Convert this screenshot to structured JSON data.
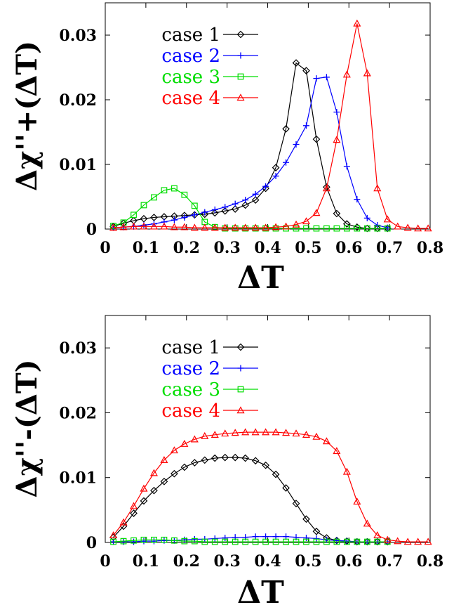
{
  "chart_data": [
    {
      "type": "line",
      "xlabel": "ΔT",
      "ylabel": "Δχ''+(ΔT)",
      "xlim": [
        0,
        0.8
      ],
      "ylim": [
        0,
        0.035
      ],
      "xticks": [
        "0",
        "0.1",
        "0.2",
        "0.3",
        "0.4",
        "0.5",
        "0.6",
        "0.7",
        "0.8"
      ],
      "yticks": [
        "0",
        "0.01",
        "0.02",
        "0.03"
      ],
      "legend_position": "top-left",
      "grid": false,
      "series": [
        {
          "name": "case 1",
          "color": "#000000",
          "marker": "diamond",
          "x": [
            0.02,
            0.045,
            0.07,
            0.095,
            0.12,
            0.145,
            0.17,
            0.195,
            0.22,
            0.245,
            0.27,
            0.295,
            0.32,
            0.345,
            0.37,
            0.395,
            0.42,
            0.445,
            0.47,
            0.495,
            0.52,
            0.545,
            0.57,
            0.595,
            0.62,
            0.645,
            0.67,
            0.695
          ],
          "y": [
            0.0004,
            0.0009,
            0.0013,
            0.0016,
            0.0018,
            0.0019,
            0.002,
            0.0021,
            0.0022,
            0.0023,
            0.0025,
            0.0028,
            0.0031,
            0.0037,
            0.0045,
            0.0063,
            0.0095,
            0.0155,
            0.0257,
            0.0245,
            0.0139,
            0.0065,
            0.0024,
            0.0008,
            0.0003,
            0.0001,
            0.0001,
            0.0001
          ]
        },
        {
          "name": "case 2",
          "color": "#0000ff",
          "marker": "plus",
          "x": [
            0.02,
            0.045,
            0.07,
            0.095,
            0.12,
            0.145,
            0.17,
            0.195,
            0.22,
            0.245,
            0.27,
            0.295,
            0.32,
            0.345,
            0.37,
            0.395,
            0.42,
            0.445,
            0.47,
            0.495,
            0.52,
            0.545,
            0.57,
            0.595,
            0.62,
            0.645,
            0.67,
            0.695
          ],
          "y": [
            0.0002,
            0.0003,
            0.0004,
            0.0006,
            0.0008,
            0.0011,
            0.0014,
            0.0018,
            0.0022,
            0.0026,
            0.003,
            0.0034,
            0.0039,
            0.0045,
            0.0054,
            0.0066,
            0.0082,
            0.0103,
            0.0131,
            0.016,
            0.0233,
            0.0235,
            0.0181,
            0.0097,
            0.0046,
            0.0017,
            0.0006,
            0.0002
          ]
        },
        {
          "name": "case 3",
          "color": "#00dd00",
          "marker": "square",
          "x": [
            0.02,
            0.045,
            0.07,
            0.095,
            0.12,
            0.145,
            0.17,
            0.195,
            0.22,
            0.245,
            0.27,
            0.295,
            0.32,
            0.345,
            0.37,
            0.395,
            0.42,
            0.445,
            0.47,
            0.495,
            0.52,
            0.545,
            0.57,
            0.595,
            0.62,
            0.645,
            0.67,
            0.695
          ],
          "y": [
            0.0005,
            0.001,
            0.0022,
            0.0037,
            0.0049,
            0.006,
            0.0063,
            0.0053,
            0.0036,
            0.0011,
            0.0003,
            0.0001,
            0.0001,
            0.0001,
            0.0001,
            0.0001,
            0.0001,
            0.0001,
            0.0001,
            0.0001,
            0.0001,
            0.0001,
            0.0001,
            0.0001,
            0.0001,
            0.0001,
            0.0001,
            0.0001
          ]
        },
        {
          "name": "case 4",
          "color": "#ff0000",
          "marker": "triangle",
          "x": [
            0.02,
            0.045,
            0.07,
            0.095,
            0.12,
            0.145,
            0.17,
            0.195,
            0.22,
            0.245,
            0.27,
            0.295,
            0.32,
            0.345,
            0.37,
            0.395,
            0.42,
            0.445,
            0.47,
            0.495,
            0.52,
            0.545,
            0.57,
            0.595,
            0.62,
            0.645,
            0.67,
            0.695,
            0.72,
            0.745,
            0.77,
            0.795
          ],
          "y": [
            0.0002,
            0.0003,
            0.0004,
            0.0004,
            0.0004,
            0.0004,
            0.0003,
            0.0003,
            0.0002,
            0.0002,
            0.0002,
            0.0002,
            0.0002,
            0.0002,
            0.0002,
            0.0002,
            0.0003,
            0.0004,
            0.0007,
            0.0012,
            0.0025,
            0.0063,
            0.0138,
            0.0239,
            0.0318,
            0.0241,
            0.0063,
            0.0015,
            0.0004,
            0.0002,
            0.0001,
            0.0001
          ]
        }
      ]
    },
    {
      "type": "line",
      "xlabel": "ΔT",
      "ylabel": "Δχ''-(ΔT)",
      "xlim": [
        0,
        0.8
      ],
      "ylim": [
        0,
        0.035
      ],
      "xticks": [
        "0",
        "0.1",
        "0.2",
        "0.3",
        "0.4",
        "0.5",
        "0.6",
        "0.7",
        "0.8"
      ],
      "yticks": [
        "0",
        "0.01",
        "0.02",
        "0.03"
      ],
      "legend_position": "top-left",
      "grid": false,
      "series": [
        {
          "name": "case 1",
          "color": "#000000",
          "marker": "diamond",
          "x": [
            0.02,
            0.045,
            0.07,
            0.095,
            0.12,
            0.145,
            0.17,
            0.195,
            0.22,
            0.245,
            0.27,
            0.295,
            0.32,
            0.345,
            0.37,
            0.395,
            0.42,
            0.445,
            0.47,
            0.495,
            0.52,
            0.545,
            0.57,
            0.595,
            0.62,
            0.645,
            0.67,
            0.695
          ],
          "y": [
            0.0008,
            0.0025,
            0.0045,
            0.0064,
            0.008,
            0.0094,
            0.0106,
            0.0116,
            0.0123,
            0.0127,
            0.013,
            0.0131,
            0.0131,
            0.013,
            0.0126,
            0.0119,
            0.0105,
            0.0084,
            0.006,
            0.0036,
            0.0017,
            0.0007,
            0.0003,
            0.0002,
            0.0001,
            0.0001,
            0.0001,
            0.0001
          ]
        },
        {
          "name": "case 2",
          "color": "#0000ff",
          "marker": "plus",
          "x": [
            0.02,
            0.045,
            0.07,
            0.095,
            0.12,
            0.145,
            0.17,
            0.195,
            0.22,
            0.245,
            0.27,
            0.295,
            0.32,
            0.345,
            0.37,
            0.395,
            0.42,
            0.445,
            0.47,
            0.495,
            0.52,
            0.545,
            0.57,
            0.595,
            0.62,
            0.645,
            0.67,
            0.695
          ],
          "y": [
            0.0001,
            0.0001,
            0.0001,
            0.0002,
            0.0002,
            0.0003,
            0.0003,
            0.0004,
            0.0005,
            0.0005,
            0.0006,
            0.0007,
            0.0008,
            0.0008,
            0.0009,
            0.0009,
            0.0009,
            0.0009,
            0.0008,
            0.0007,
            0.0006,
            0.0004,
            0.0003,
            0.0002,
            0.0001,
            0.0001,
            0.0001,
            0.0001
          ]
        },
        {
          "name": "case 3",
          "color": "#00dd00",
          "marker": "square",
          "x": [
            0.02,
            0.045,
            0.07,
            0.095,
            0.12,
            0.145,
            0.17,
            0.195,
            0.22,
            0.245,
            0.27,
            0.295,
            0.32,
            0.345,
            0.37,
            0.395,
            0.42,
            0.445,
            0.47,
            0.495,
            0.52,
            0.545,
            0.57,
            0.595,
            0.62,
            0.645,
            0.67,
            0.695
          ],
          "y": [
            0.0001,
            0.0002,
            0.0003,
            0.0004,
            0.0004,
            0.0004,
            0.0003,
            0.0002,
            0.0002,
            0.0001,
            0.0001,
            0.0001,
            0.0001,
            0.0001,
            0.0001,
            0.0001,
            0.0001,
            0.0001,
            0.0001,
            0.0001,
            0.0001,
            0.0001,
            0.0001,
            0.0001,
            0.0001,
            0.0001,
            0.0001,
            0.0001
          ]
        },
        {
          "name": "case 4",
          "color": "#ff0000",
          "marker": "triangle",
          "x": [
            0.02,
            0.045,
            0.07,
            0.095,
            0.12,
            0.145,
            0.17,
            0.195,
            0.22,
            0.245,
            0.27,
            0.295,
            0.32,
            0.345,
            0.37,
            0.395,
            0.42,
            0.445,
            0.47,
            0.495,
            0.52,
            0.545,
            0.57,
            0.595,
            0.62,
            0.645,
            0.67,
            0.695,
            0.72,
            0.745,
            0.77,
            0.795
          ],
          "y": [
            0.0011,
            0.0031,
            0.0056,
            0.0083,
            0.0107,
            0.0127,
            0.0142,
            0.0152,
            0.0159,
            0.0164,
            0.0166,
            0.0168,
            0.0169,
            0.017,
            0.017,
            0.017,
            0.017,
            0.0169,
            0.0168,
            0.0166,
            0.0163,
            0.0156,
            0.0141,
            0.0109,
            0.0063,
            0.0029,
            0.0011,
            0.0004,
            0.0002,
            0.0001,
            0.0001,
            0.0001
          ]
        }
      ]
    }
  ]
}
